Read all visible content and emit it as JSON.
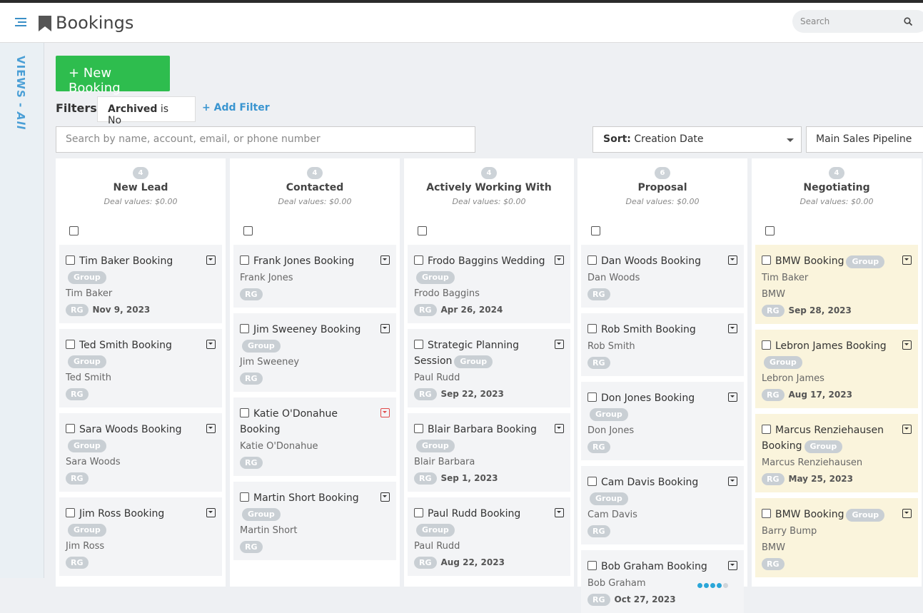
{
  "header": {
    "title": "Bookings",
    "search_placeholder": "Search"
  },
  "sidebar": {
    "label": "VIEWS -",
    "view": "All"
  },
  "toolbar": {
    "new_button": "+ New Booking",
    "filters_label": "Filters:",
    "filter": {
      "field": "Archived",
      "condition": "is No"
    },
    "add_filter": "+ Add Filter",
    "search_placeholder": "Search by name, account, email, or phone number",
    "sort_label": "Sort:",
    "sort_value": "Creation Date",
    "pipeline": "Main Sales Pipeline"
  },
  "columns": [
    {
      "count": 4,
      "title": "New Lead",
      "deal_label": "Deal values:",
      "deal_value": "$0.00",
      "cards": [
        {
          "title": "Tim Baker Booking",
          "tag": "Group",
          "contact": "Tim Baker",
          "initials": "RG",
          "date": "Nov 9, 2023"
        },
        {
          "title": "Ted Smith Booking",
          "tag": "Group",
          "contact": "Ted Smith",
          "initials": "RG"
        },
        {
          "title": "Sara Woods Booking",
          "tag": "Group",
          "contact": "Sara Woods",
          "initials": "RG"
        },
        {
          "title": "Jim Ross Booking",
          "tag": "Group",
          "contact": "Jim Ross",
          "initials": "RG"
        }
      ]
    },
    {
      "count": 4,
      "title": "Contacted",
      "deal_label": "Deal values:",
      "deal_value": "$0.00",
      "cards": [
        {
          "title": "Frank Jones Booking",
          "contact": "Frank Jones",
          "initials": "RG"
        },
        {
          "title": "Jim Sweeney Booking",
          "tag": "Group",
          "contact": "Jim Sweeney",
          "initials": "RG"
        },
        {
          "title": "Katie O'Donahue Booking",
          "contact": "Katie O'Donahue",
          "initials": "RG"
        },
        {
          "title": "Martin Short Booking",
          "tag": "Group",
          "contact": "Martin Short",
          "initials": "RG"
        }
      ]
    },
    {
      "count": 4,
      "title": "Actively Working With",
      "deal_label": "Deal values:",
      "deal_value": "$0.00",
      "cards": [
        {
          "title": "Frodo Baggins Wedding",
          "tag": "Group",
          "contact": "Frodo Baggins",
          "initials": "RG",
          "date": "Apr 26, 2024"
        },
        {
          "title": "Strategic Planning Session",
          "tag": "Group",
          "contact": "Paul Rudd",
          "initials": "RG",
          "date": "Sep 22, 2023"
        },
        {
          "title": "Blair Barbara Booking",
          "tag": "Group",
          "contact": "Blair Barbara",
          "initials": "RG",
          "date": "Sep 1, 2023"
        },
        {
          "title": "Paul Rudd Booking",
          "tag": "Group",
          "contact": "Paul Rudd",
          "initials": "RG",
          "date": "Aug 22, 2023"
        }
      ]
    },
    {
      "count": 6,
      "title": "Proposal",
      "deal_label": "Deal values:",
      "deal_value": "$0.00",
      "cards": [
        {
          "title": "Dan Woods Booking",
          "contact": "Dan Woods",
          "initials": "RG"
        },
        {
          "title": "Rob Smith Booking",
          "contact": "Rob Smith",
          "initials": "RG"
        },
        {
          "title": "Don Jones Booking",
          "tag": "Group",
          "contact": "Don Jones",
          "initials": "RG"
        },
        {
          "title": "Cam Davis Booking",
          "tag": "Group",
          "contact": "Cam Davis",
          "initials": "RG"
        },
        {
          "title": "Bob Graham Booking",
          "contact": "Bob Graham",
          "initials": "RG",
          "date": "Oct 27, 2023"
        }
      ]
    },
    {
      "count": 4,
      "title": "Negotiating",
      "deal_label": "Deal values:",
      "deal_value": "$0.00",
      "cards": [
        {
          "title": "BMW Booking",
          "tag": "Group",
          "contact": "Tim Baker",
          "account": "BMW",
          "initials": "RG",
          "date": "Sep 28, 2023"
        },
        {
          "title": "Lebron James Booking",
          "tag": "Group",
          "contact": "Lebron James",
          "initials": "RG",
          "date": "Aug 17, 2023"
        },
        {
          "title": "Marcus Renziehausen Booking",
          "tag": "Group",
          "contact": "Marcus Renziehausen",
          "initials": "RG",
          "date": "May 25, 2023"
        },
        {
          "title": "BMW Booking",
          "tag": "Group",
          "contact": "Barry Bump",
          "account": "BMW",
          "initials": "RG"
        }
      ]
    }
  ]
}
